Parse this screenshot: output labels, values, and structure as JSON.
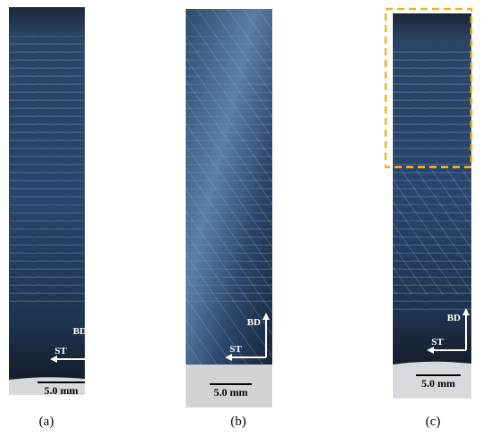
{
  "panels": [
    {
      "label": "(a)",
      "bd": "BD",
      "st": "ST",
      "scale_bar": "5.0 mm"
    },
    {
      "label": "(b)",
      "bd": "BD",
      "st": "ST",
      "scale_bar": "5.0 mm"
    },
    {
      "label": "(c)",
      "bd": "BD",
      "st": "ST",
      "scale_bar": "5.0 mm"
    }
  ]
}
